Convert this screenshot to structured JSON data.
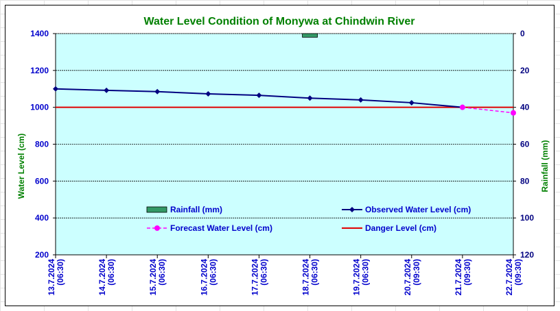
{
  "chart_data": {
    "type": "line",
    "title": "Water Level Condition of Monywa at Chindwin River",
    "ylabel": "Water Level (cm)",
    "y2label": "Rainfall (mm)",
    "ylim": [
      200,
      1400
    ],
    "yticks": [
      200,
      400,
      600,
      800,
      1000,
      1200,
      1400
    ],
    "y2lim": [
      0,
      120
    ],
    "y2ticks": [
      0,
      20,
      40,
      60,
      80,
      100,
      120
    ],
    "y2_reversed": true,
    "grid": true,
    "legend": "inside-bottom",
    "categories": [
      [
        "13.7.2024",
        "(06:30)"
      ],
      [
        "14.7.2024",
        "(06:30)"
      ],
      [
        "15.7.2024",
        "(06:30)"
      ],
      [
        "16.7.2024",
        "(06:30)"
      ],
      [
        "17.7.2024",
        "(06:30)"
      ],
      [
        "18.7.2024",
        "(06:30)"
      ],
      [
        "19.7.2024",
        "(06:30)"
      ],
      [
        "20.7.2024",
        "(09:30)"
      ],
      [
        "21.7.2024",
        "(09:30)"
      ],
      [
        "22.7.2024",
        "(09:30)"
      ]
    ],
    "series": [
      {
        "name": "Rainfall (mm)",
        "type": "bar",
        "axis": "right",
        "values": [
          0,
          0,
          0,
          0,
          0,
          2,
          0,
          0,
          0,
          null
        ]
      },
      {
        "name": "Observed Water Level (cm)",
        "type": "line",
        "axis": "left",
        "values": [
          1100,
          1092,
          1085,
          1073,
          1065,
          1050,
          1040,
          1025,
          1000,
          null
        ]
      },
      {
        "name": "Forecast Water Level (cm)",
        "type": "line-dashed",
        "axis": "left",
        "values": [
          null,
          null,
          null,
          null,
          null,
          null,
          null,
          null,
          1000,
          970
        ]
      },
      {
        "name": "Danger Level (cm)",
        "type": "hline",
        "axis": "left",
        "value": 1000
      }
    ]
  },
  "colors": {
    "plot_bg": "#ccffff",
    "title": "#008000",
    "left_ticks": "#0000cc",
    "right_ticks": "#000080",
    "axis_title": "#008000",
    "x_ticks": "#0000cc",
    "rainfall": "#339966",
    "observed": "#000080",
    "forecast": "#ff00ff",
    "danger": "#e00000",
    "legend_text": "#0000cc"
  }
}
